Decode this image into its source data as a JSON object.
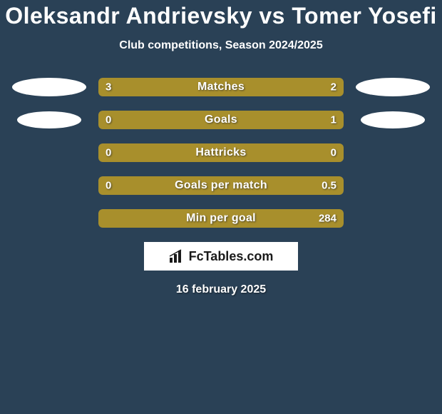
{
  "title": "Oleksandr Andrievsky vs Tomer Yosefi",
  "subtitle": "Club competitions, Season 2024/2025",
  "date": "16 february 2025",
  "logo_text": "FcTables.com",
  "track_color": "#3e5568",
  "background_color": "#2a4156",
  "player1_color": "#a88f2c",
  "player2_color": "#a88f2c",
  "ellipse_color": "#ffffff",
  "stats": [
    {
      "label": "Matches",
      "left_val": "3",
      "right_val": "2",
      "left_pct": 60,
      "right_pct": 40,
      "show_left_ellipse": true,
      "show_right_ellipse": true,
      "ellipse_small": false
    },
    {
      "label": "Goals",
      "left_val": "0",
      "right_val": "1",
      "left_pct": 20,
      "right_pct": 80,
      "show_left_ellipse": true,
      "show_right_ellipse": true,
      "ellipse_small": true
    },
    {
      "label": "Hattricks",
      "left_val": "0",
      "right_val": "0",
      "left_pct": 100,
      "right_pct": 0,
      "show_left_ellipse": false,
      "show_right_ellipse": false,
      "ellipse_small": false
    },
    {
      "label": "Goals per match",
      "left_val": "0",
      "right_val": "0.5",
      "left_pct": 20,
      "right_pct": 80,
      "show_left_ellipse": false,
      "show_right_ellipse": false,
      "ellipse_small": false
    },
    {
      "label": "Min per goal",
      "left_val": "",
      "right_val": "284",
      "left_pct": 33,
      "right_pct": 67,
      "show_left_ellipse": false,
      "show_right_ellipse": false,
      "ellipse_small": false
    }
  ]
}
